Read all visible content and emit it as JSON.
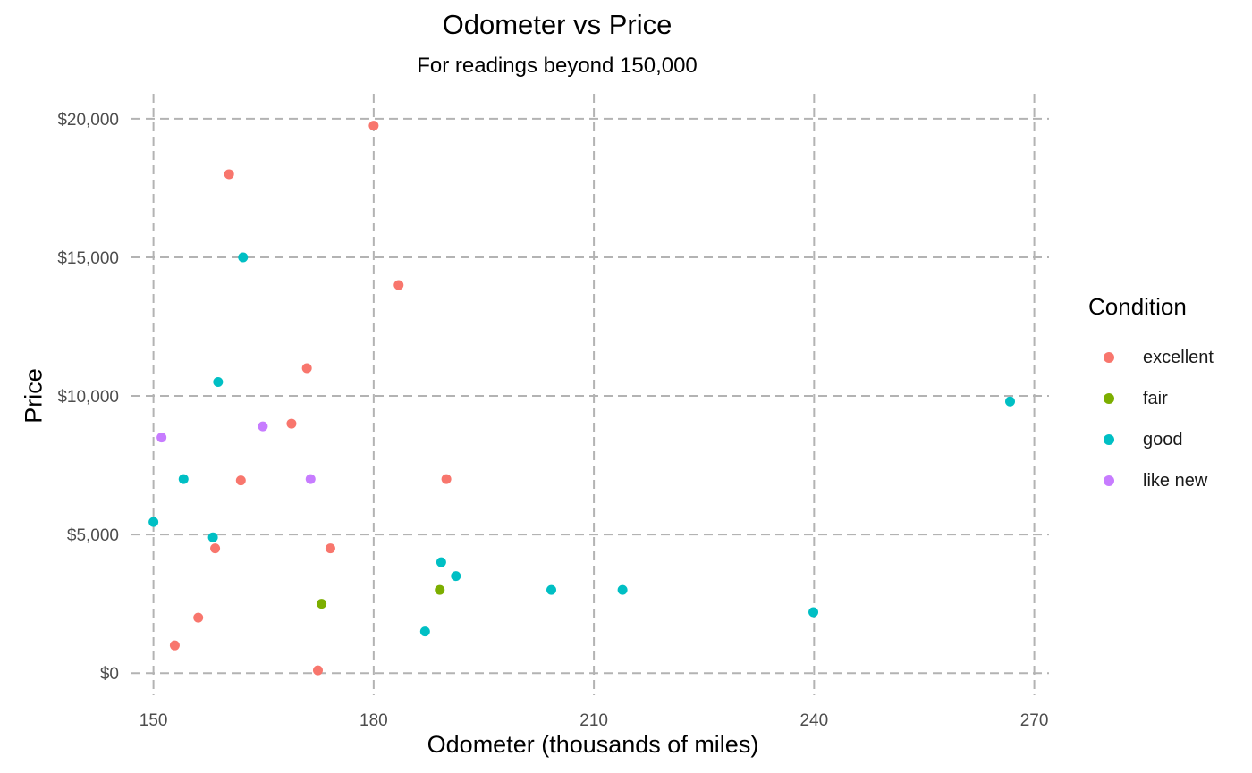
{
  "chart_data": {
    "type": "scatter",
    "title": "Odometer vs Price",
    "subtitle": "For readings beyond 150,000",
    "xlabel": "Odometer (thousands of miles)",
    "ylabel": "Price",
    "xlim": [
      147,
      272
    ],
    "ylim": [
      -800,
      20900
    ],
    "x_ticks": [
      150,
      180,
      210,
      240,
      270
    ],
    "x_tick_labels": [
      "150",
      "180",
      "210",
      "240",
      "270"
    ],
    "y_ticks": [
      0,
      5000,
      10000,
      15000,
      20000
    ],
    "y_tick_labels": [
      "$0",
      "$5,000",
      "$10,000",
      "$15,000",
      "$20,000"
    ],
    "grid": true,
    "grid_style": "dashed",
    "legend": {
      "title": "Condition",
      "position": "right",
      "entries": [
        {
          "name": "excellent",
          "color": "#F8766D"
        },
        {
          "name": "fair",
          "color": "#7CAE00"
        },
        {
          "name": "good",
          "color": "#00BFC4"
        },
        {
          "name": "like new",
          "color": "#C77CFF"
        }
      ]
    },
    "series": [
      {
        "name": "excellent",
        "color": "#F8766D",
        "points": [
          [
            180,
            19750
          ],
          [
            160.3,
            18000
          ],
          [
            183.4,
            14000
          ],
          [
            170.9,
            11000
          ],
          [
            168.8,
            9000
          ],
          [
            161.9,
            6950
          ],
          [
            189.9,
            7000
          ],
          [
            158.4,
            4500
          ],
          [
            174.1,
            4500
          ],
          [
            156.1,
            2000
          ],
          [
            152.9,
            1000
          ],
          [
            172.4,
            100
          ]
        ]
      },
      {
        "name": "fair",
        "color": "#7CAE00",
        "points": [
          [
            172.9,
            2500
          ],
          [
            189.0,
            3000
          ]
        ]
      },
      {
        "name": "good",
        "color": "#00BFC4",
        "points": [
          [
            162.2,
            15000
          ],
          [
            158.8,
            10500
          ],
          [
            154.1,
            7000
          ],
          [
            150.0,
            5450
          ],
          [
            158.1,
            4900
          ],
          [
            189.2,
            4000
          ],
          [
            191.2,
            3500
          ],
          [
            187.0,
            1500
          ],
          [
            204.2,
            3000
          ],
          [
            213.9,
            3000
          ],
          [
            239.9,
            2200
          ],
          [
            266.7,
            9800
          ]
        ]
      },
      {
        "name": "like new",
        "color": "#C77CFF",
        "points": [
          [
            151.1,
            8500
          ],
          [
            164.9,
            8900
          ],
          [
            171.4,
            7000
          ]
        ]
      }
    ]
  }
}
